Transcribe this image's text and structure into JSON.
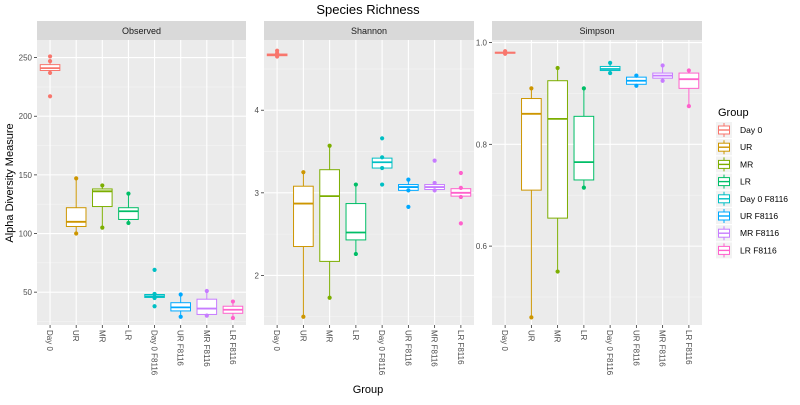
{
  "title": "Species Richness",
  "xlabel": "Group",
  "ylabel": "Alpha Diversity Measure",
  "legend": {
    "title": "Group",
    "position": "right",
    "items": [
      {
        "label": "Day 0",
        "color": "#f8766d"
      },
      {
        "label": "UR",
        "color": "#cd9600"
      },
      {
        "label": "MR",
        "color": "#7cae00"
      },
      {
        "label": "LR",
        "color": "#00be67"
      },
      {
        "label": "Day 0 F8116",
        "color": "#00bfc4"
      },
      {
        "label": "UR F8116",
        "color": "#00a9ff"
      },
      {
        "label": "MR F8116",
        "color": "#c77cff"
      },
      {
        "label": "LR F8116",
        "color": "#ff61cc"
      }
    ]
  },
  "chart_data": [
    {
      "type": "boxplot",
      "panel": "Observed",
      "categories": [
        "Day 0",
        "UR",
        "MR",
        "LR",
        "Day 0 F8116",
        "UR F8116",
        "MR F8116",
        "LR F8116"
      ],
      "ylim": [
        22,
        265
      ],
      "yticks": [
        50,
        100,
        150,
        200,
        250
      ],
      "grid": true,
      "boxes": [
        {
          "min": 237,
          "q1": 239,
          "median": 241,
          "q3": 244,
          "max": 247,
          "outliers": [
            217,
            251
          ]
        },
        {
          "min": 100,
          "q1": 106,
          "median": 110,
          "q3": 122,
          "max": 147,
          "outliers": []
        },
        {
          "min": 105,
          "q1": 123,
          "median": 136,
          "q3": 138,
          "max": 141,
          "outliers": []
        },
        {
          "min": 109,
          "q1": 112,
          "median": 119,
          "q3": 122,
          "max": 134,
          "outliers": []
        },
        {
          "min": 45,
          "q1": 45.5,
          "median": 46.5,
          "q3": 48,
          "max": 48.5,
          "outliers": [
            69,
            38
          ]
        },
        {
          "min": 29,
          "q1": 34,
          "median": 37,
          "q3": 41,
          "max": 48,
          "outliers": []
        },
        {
          "min": 30,
          "q1": 31,
          "median": 36,
          "q3": 44,
          "max": 51,
          "outliers": []
        },
        {
          "min": 28,
          "q1": 32,
          "median": 35,
          "q3": 38,
          "max": 42,
          "outliers": []
        }
      ]
    },
    {
      "type": "boxplot",
      "panel": "Shannon",
      "categories": [
        "Day 0",
        "UR",
        "MR",
        "LR",
        "Day 0 F8116",
        "UR F8116",
        "MR F8116",
        "LR F8116"
      ],
      "ylim": [
        1.4,
        4.85
      ],
      "yticks": [
        2,
        3,
        4
      ],
      "grid": true,
      "boxes": [
        {
          "min": 4.65,
          "q1": 4.66,
          "median": 4.67,
          "q3": 4.68,
          "max": 4.69,
          "outliers": [
            4.72
          ]
        },
        {
          "min": 1.5,
          "q1": 2.35,
          "median": 2.87,
          "q3": 3.08,
          "max": 3.25,
          "outliers": []
        },
        {
          "min": 1.73,
          "q1": 2.17,
          "median": 2.96,
          "q3": 3.28,
          "max": 3.57,
          "outliers": []
        },
        {
          "min": 2.26,
          "q1": 2.43,
          "median": 2.52,
          "q3": 2.87,
          "max": 3.1,
          "outliers": []
        },
        {
          "min": 3.3,
          "q1": 3.3,
          "median": 3.37,
          "q3": 3.42,
          "max": 3.43,
          "outliers": [
            3.66,
            3.1
          ]
        },
        {
          "min": 3.03,
          "q1": 3.03,
          "median": 3.07,
          "q3": 3.1,
          "max": 3.16,
          "outliers": [
            2.83
          ]
        },
        {
          "min": 3.03,
          "q1": 3.04,
          "median": 3.07,
          "q3": 3.1,
          "max": 3.12,
          "outliers": [
            3.39
          ]
        },
        {
          "min": 2.95,
          "q1": 2.96,
          "median": 3.0,
          "q3": 3.05,
          "max": 3.06,
          "outliers": [
            3.24,
            2.63
          ]
        }
      ]
    },
    {
      "type": "boxplot",
      "panel": "Simpson",
      "categories": [
        "Day 0",
        "UR",
        "MR",
        "LR",
        "Day 0 F8116",
        "UR F8116",
        "MR F8116",
        "LR F8116"
      ],
      "ylim": [
        0.445,
        1.005
      ],
      "yticks": [
        0.6,
        0.8,
        1.0
      ],
      "ytick_labels": [
        "0.6",
        "0.8",
        "1.0"
      ],
      "grid": true,
      "boxes": [
        {
          "min": 0.978,
          "q1": 0.979,
          "median": 0.98,
          "q3": 0.981,
          "max": 0.983,
          "outliers": []
        },
        {
          "min": 0.46,
          "q1": 0.71,
          "median": 0.86,
          "q3": 0.89,
          "max": 0.91,
          "outliers": []
        },
        {
          "min": 0.55,
          "q1": 0.655,
          "median": 0.85,
          "q3": 0.925,
          "max": 0.95,
          "outliers": []
        },
        {
          "min": 0.715,
          "q1": 0.73,
          "median": 0.765,
          "q3": 0.855,
          "max": 0.91,
          "outliers": []
        },
        {
          "min": 0.94,
          "q1": 0.945,
          "median": 0.948,
          "q3": 0.953,
          "max": 0.96,
          "outliers": []
        },
        {
          "min": 0.915,
          "q1": 0.918,
          "median": 0.925,
          "q3": 0.932,
          "max": 0.935,
          "outliers": []
        },
        {
          "min": 0.925,
          "q1": 0.93,
          "median": 0.935,
          "q3": 0.94,
          "max": 0.955,
          "outliers": []
        },
        {
          "min": 0.875,
          "q1": 0.91,
          "median": 0.928,
          "q3": 0.94,
          "max": 0.945,
          "outliers": []
        }
      ]
    }
  ]
}
